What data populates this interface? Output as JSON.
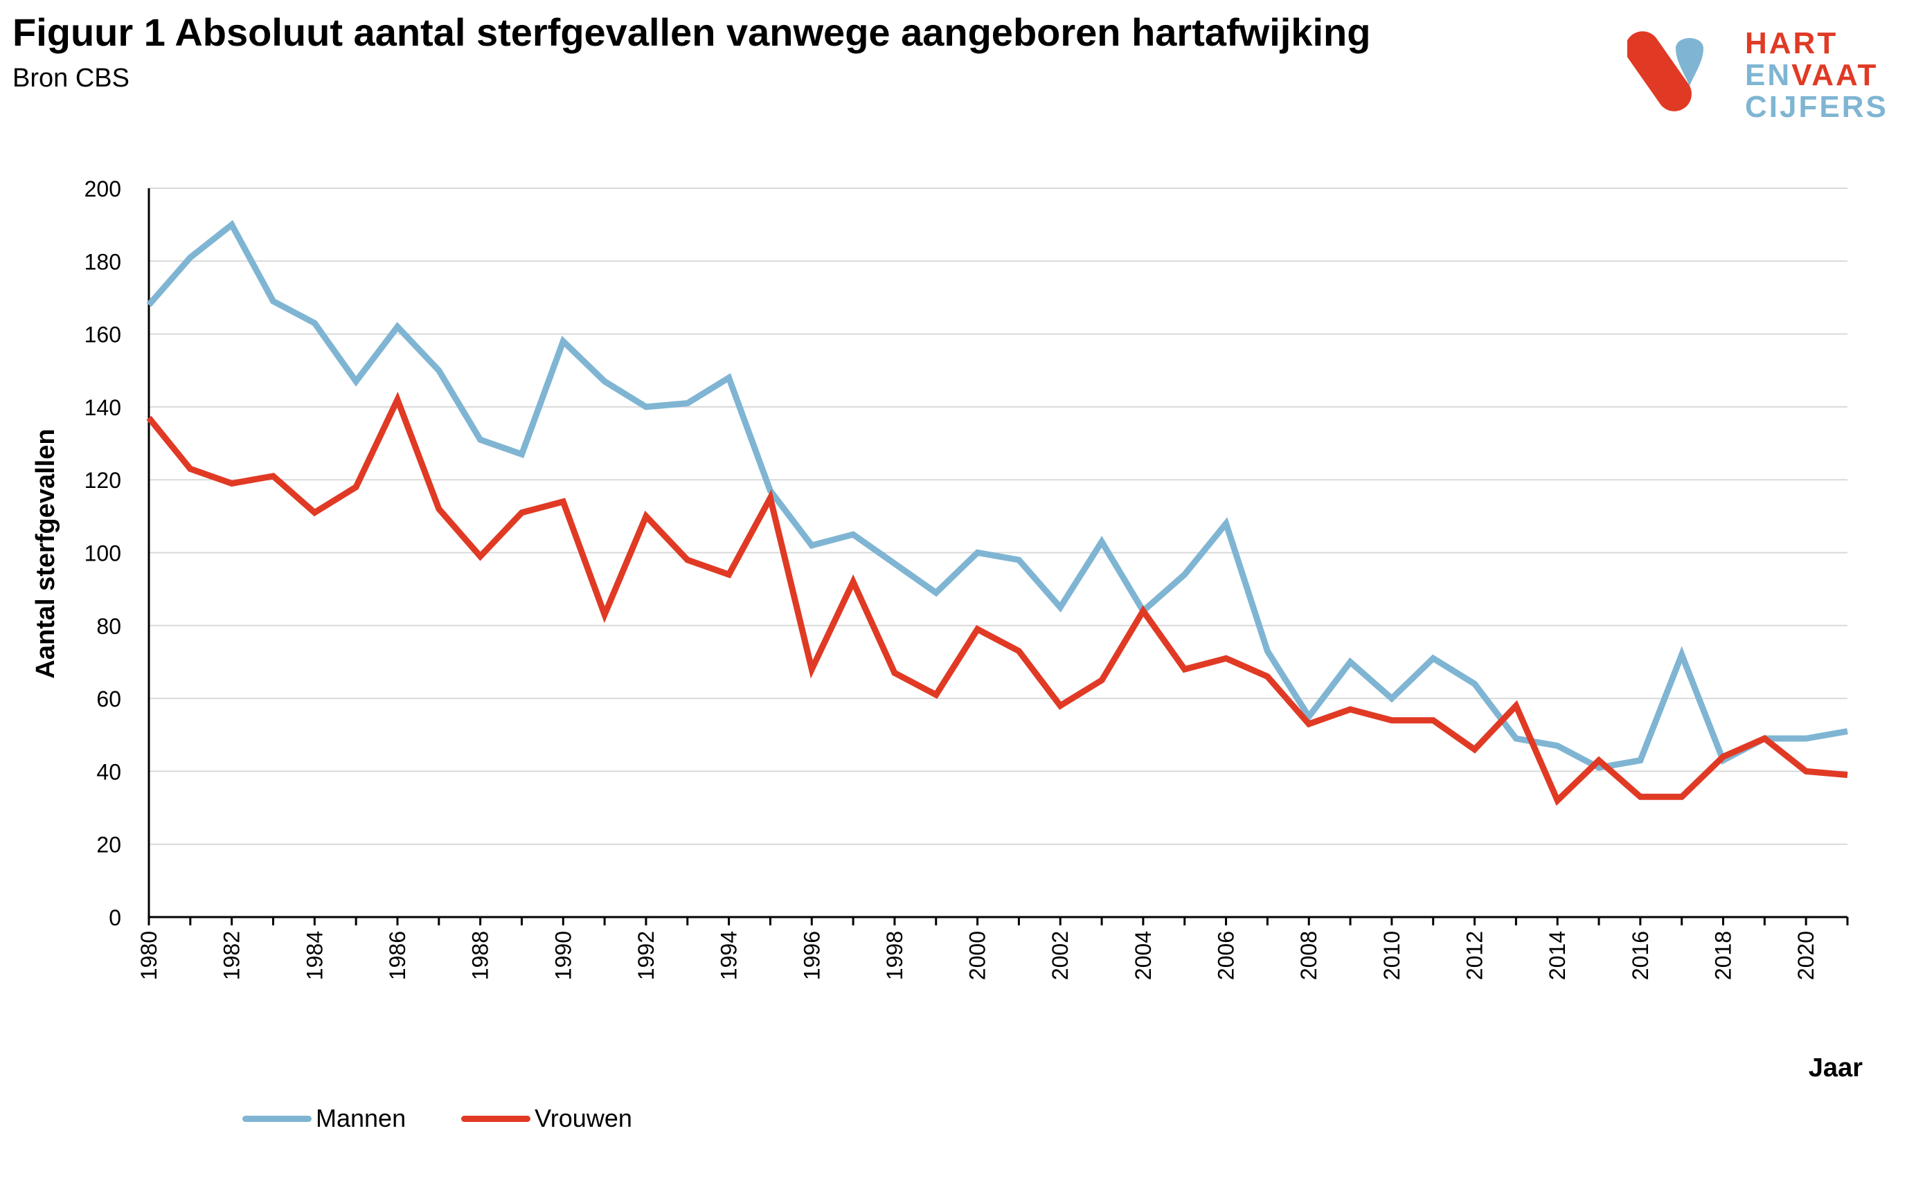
{
  "header": {
    "title": "Figuur 1 Absoluut aantal sterfgevallen vanwege aangeboren hartafwijking",
    "subtitle": "Bron CBS"
  },
  "logo": {
    "line1": "HART",
    "line2a": "EN",
    "line2b": "VAAT",
    "line3": "CIJFERS",
    "color_red": "#e03a25",
    "color_blue": "#7fb5d3"
  },
  "chart_data": {
    "type": "line",
    "title": "Figuur 1 Absoluut aantal sterfgevallen vanwege aangeboren hartafwijking",
    "xlabel": "Jaar",
    "ylabel": "Aantal sterfgevallen",
    "ylim": [
      0,
      200
    ],
    "yticks": [
      "0",
      "20",
      "40",
      "60",
      "80",
      "100",
      "120",
      "140",
      "160",
      "180",
      "200"
    ],
    "xtick_labels": [
      "1980",
      "1982",
      "1984",
      "1986",
      "1988",
      "1990",
      "1992",
      "1994",
      "1996",
      "1998",
      "2000",
      "2002",
      "2004",
      "2006",
      "2008",
      "2010",
      "2012",
      "2014",
      "2016",
      "2018",
      "2020"
    ],
    "grid": true,
    "legend_position": "bottom-left",
    "x": [
      1980,
      1981,
      1982,
      1983,
      1984,
      1985,
      1986,
      1987,
      1988,
      1989,
      1990,
      1991,
      1992,
      1993,
      1994,
      1995,
      1996,
      1997,
      1998,
      1999,
      2000,
      2001,
      2002,
      2003,
      2004,
      2005,
      2006,
      2007,
      2008,
      2009,
      2010,
      2011,
      2012,
      2013,
      2014,
      2015,
      2016,
      2017,
      2018,
      2019,
      2020,
      2021
    ],
    "series": [
      {
        "name": "Mannen",
        "color": "#7fb5d3",
        "values": [
          168,
          181,
          190,
          169,
          163,
          147,
          162,
          150,
          131,
          127,
          158,
          147,
          140,
          141,
          148,
          117,
          102,
          105,
          97,
          89,
          100,
          98,
          85,
          103,
          84,
          94,
          108,
          73,
          55,
          70,
          60,
          71,
          64,
          49,
          47,
          41,
          43,
          72,
          43,
          49,
          49,
          51
        ]
      },
      {
        "name": "Vrouwen",
        "color": "#e03a25",
        "values": [
          137,
          123,
          119,
          121,
          111,
          118,
          142,
          112,
          99,
          111,
          114,
          83,
          110,
          98,
          94,
          115,
          68,
          92,
          67,
          61,
          79,
          73,
          58,
          65,
          84,
          68,
          71,
          66,
          53,
          57,
          54,
          54,
          46,
          58,
          32,
          43,
          33,
          33,
          44,
          49,
          40,
          39
        ]
      }
    ]
  }
}
